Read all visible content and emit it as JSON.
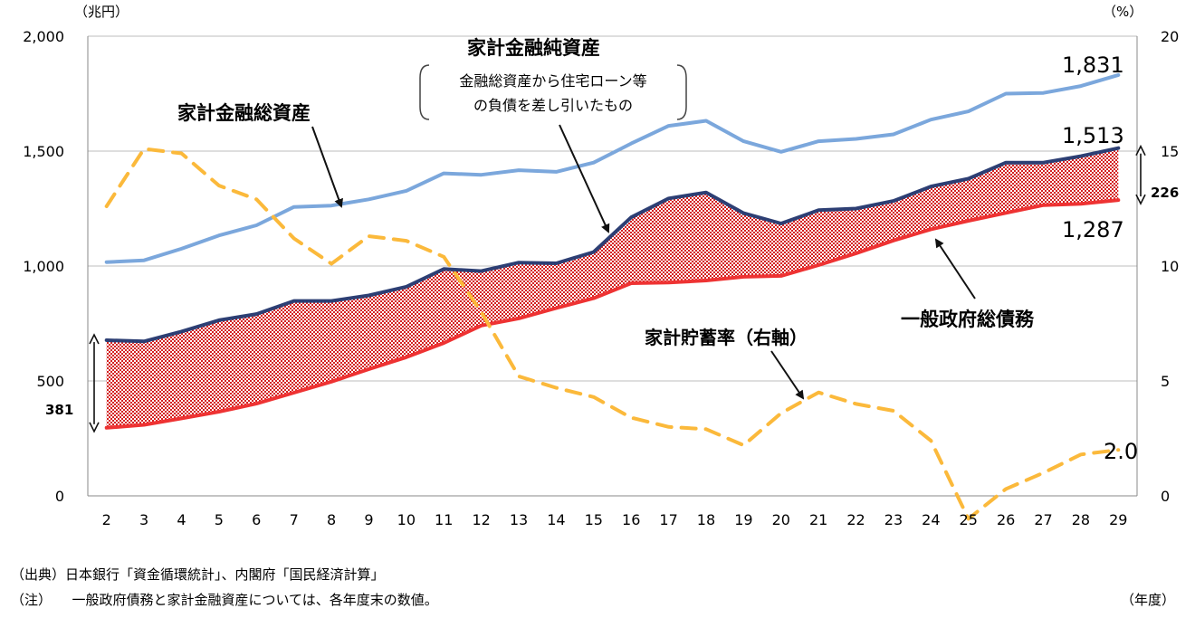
{
  "chart_data": {
    "type": "line",
    "title": "",
    "y_left_unit": "（兆円）",
    "y_right_unit": "（%）",
    "x_unit": "（年度）",
    "ylim_left": [
      0,
      2000
    ],
    "ylim_right": [
      0,
      20
    ],
    "yticks_left": [
      "0",
      "500",
      "1,000",
      "1,500",
      "2,000"
    ],
    "yticks_right": [
      "0",
      "5",
      "10",
      "15",
      "20"
    ],
    "x": [
      "2",
      "3",
      "4",
      "5",
      "6",
      "7",
      "8",
      "9",
      "10",
      "11",
      "12",
      "13",
      "14",
      "15",
      "16",
      "17",
      "18",
      "19",
      "20",
      "21",
      "22",
      "23",
      "24",
      "25",
      "26",
      "27",
      "28",
      "29"
    ],
    "grid": "horizontal",
    "series": [
      {
        "name": "家計金融総資産",
        "axis": "left",
        "color": "#7ba7dc",
        "values": [
          1017,
          1025,
          1075,
          1133,
          1177,
          1257,
          1263,
          1290,
          1327,
          1403,
          1397,
          1417,
          1410,
          1450,
          1533,
          1610,
          1632,
          1543,
          1497,
          1543,
          1553,
          1573,
          1637,
          1673,
          1750,
          1753,
          1783,
          1831
        ]
      },
      {
        "name": "家計金融純資産",
        "axis": "left",
        "color": "#2d3f74",
        "values": [
          677,
          672,
          715,
          764,
          791,
          848,
          848,
          872,
          910,
          987,
          978,
          1015,
          1012,
          1061,
          1212,
          1294,
          1320,
          1230,
          1185,
          1243,
          1250,
          1283,
          1346,
          1380,
          1450,
          1450,
          1478,
          1513
        ]
      },
      {
        "name": "一般政府総債務",
        "axis": "left",
        "color": "#ee3333",
        "values": [
          296,
          309,
          337,
          366,
          401,
          449,
          497,
          551,
          603,
          665,
          741,
          772,
          817,
          860,
          925,
          928,
          937,
          953,
          957,
          1004,
          1055,
          1111,
          1160,
          1197,
          1231,
          1265,
          1271,
          1287
        ]
      },
      {
        "name": "家計貯蓄率（右軸）",
        "axis": "right",
        "color": "#fbb93b",
        "values": [
          12.6,
          15.1,
          14.9,
          13.5,
          12.9,
          11.2,
          10.1,
          11.3,
          11.1,
          10.4,
          8.0,
          5.2,
          4.7,
          4.3,
          3.4,
          3.0,
          2.9,
          2.2,
          3.6,
          4.5,
          4.0,
          3.7,
          2.4,
          -1.0,
          0.3,
          1.0,
          1.8,
          2.0
        ]
      }
    ],
    "annotations": {
      "label_total_assets": "家計金融総資産",
      "label_net_assets": "家計金融純資産",
      "net_assets_note_line1": "金融総資産から住宅ローン等",
      "net_assets_note_line2": "の負債を差し引いたもの",
      "label_debt": "一般政府総債務",
      "label_saving": "家計貯蓄率（右軸）",
      "end_total_assets": "1,831",
      "end_net_assets": "1,513",
      "end_debt": "1,287",
      "end_saving": "2.0",
      "gap_start": "381",
      "gap_end": "226"
    }
  },
  "notes": {
    "source": "（出典）日本銀行「資金循環統計」、内閣府「国民経済計算」",
    "note": "（注）　　一般政府債務と家計金融資産については、各年度末の数値。"
  }
}
